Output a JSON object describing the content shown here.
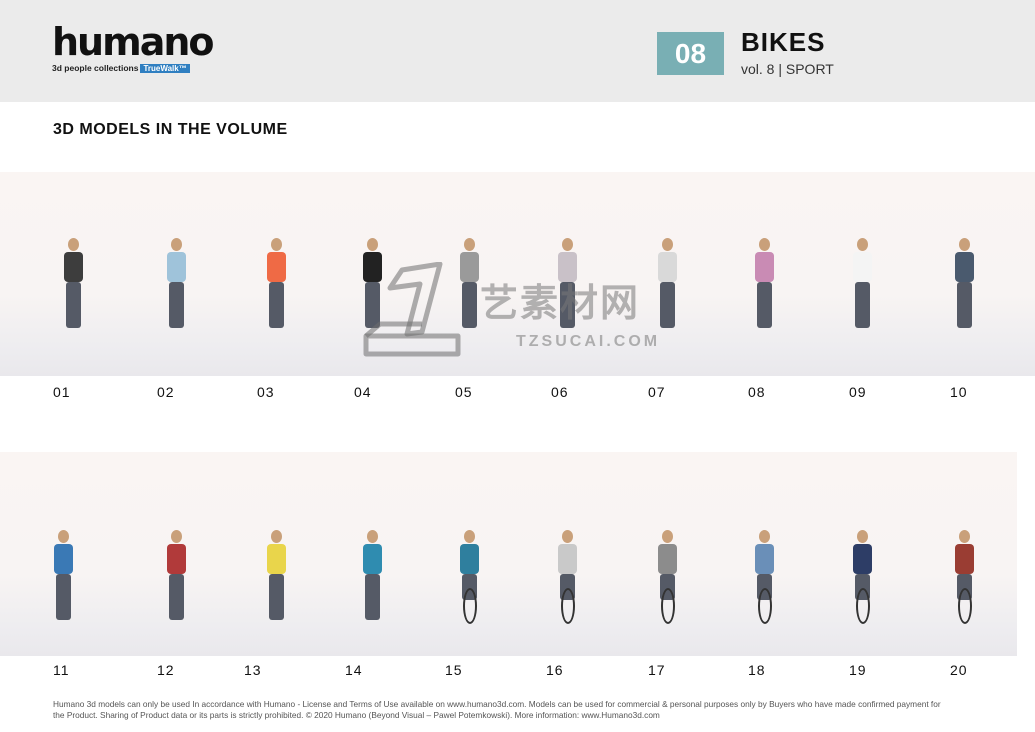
{
  "header": {
    "logo_text": "humano",
    "logo_subtitle": "3d people collections",
    "logo_tag": "TrueWalk™",
    "volume_number": "08",
    "volume_title": "BIKES",
    "volume_subtitle": "vol. 8 | SPORT"
  },
  "section_title": "3D MODELS IN THE VOLUME",
  "row1": {
    "labels": [
      "01",
      "02",
      "03",
      "04",
      "05",
      "06",
      "07",
      "08",
      "09",
      "10"
    ],
    "colors": [
      "#3d3d3d",
      "#9fc3da",
      "#ef6a45",
      "#222222",
      "#9a9a9a",
      "#c9c1c8",
      "#d9d9d9",
      "#c98bb4",
      "#f4f4f4",
      "#4a5a6e"
    ]
  },
  "row2": {
    "labels": [
      "11",
      "12",
      "13",
      "14",
      "15",
      "16",
      "17",
      "18",
      "19",
      "20"
    ],
    "colors": [
      "#3a79b5",
      "#b13a3a",
      "#e9d54b",
      "#2f8cb0",
      "#2f7f9e",
      "#c9c9c9",
      "#8c8c8c",
      "#6a8fb8",
      "#2d3d66",
      "#9a3d33"
    ]
  },
  "watermark": {
    "text": "艺素材网",
    "url": "TZSUCAI.COM"
  },
  "footer": {
    "line1": "Humano 3d models can only be used In accordance with Humano - License and Terms of Use available on www.humano3d.com. Models can be used for commercial & personal purposes only by Buyers who have made confirmed payment for",
    "line2": "the Product. Sharing of Product data or its parts is strictly prohibited. © 2020 Humano (Beyond Visual – Pawel Potemkowski). More information: www.Humano3d.com"
  }
}
